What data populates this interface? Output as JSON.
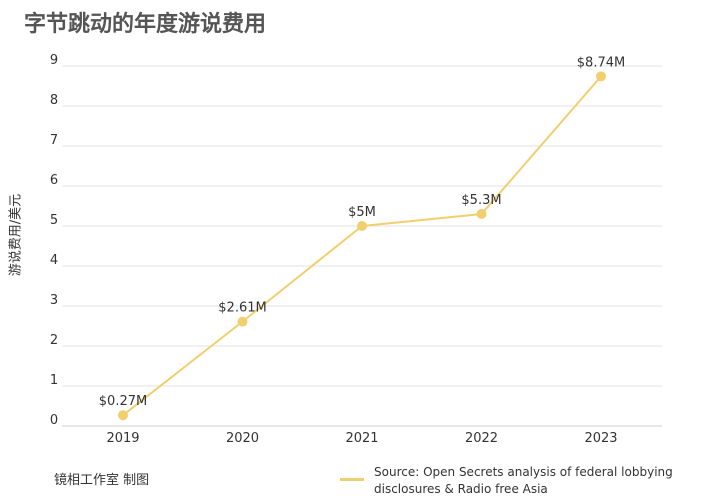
{
  "title": "字节跳动的年度游说费用",
  "footer_credit": "镜相工作室 制图",
  "source_note": "Source: Open Secrets analysis of federal lobbying disclosures & Radio free Asia",
  "chart_data": {
    "type": "line",
    "title": "字节跳动的年度游说费用",
    "ylabel": "游说费用/美元",
    "xlabel": "",
    "ylim": [
      0,
      9
    ],
    "yticks": [
      "0",
      "1",
      "2",
      "3",
      "4",
      "5",
      "6",
      "7",
      "8",
      "9"
    ],
    "categories": [
      "2019",
      "2020",
      "2021",
      "2022",
      "2023"
    ],
    "series": [
      {
        "values": [
          0.27,
          2.61,
          5,
          5.3,
          8.74
        ],
        "labels": [
          "$0.27M",
          "$2.61M",
          "$5M",
          "$5.3M",
          "$8.74M"
        ],
        "color": "#f2cf6e"
      }
    ],
    "grid": true,
    "legend": "bottom-right"
  }
}
